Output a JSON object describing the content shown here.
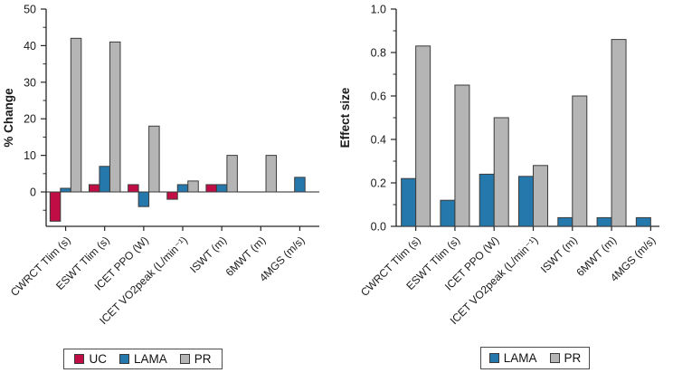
{
  "colors": {
    "uc": "#C00D45",
    "lama": "#2478AC",
    "pr": "#B5B5B5",
    "bar_edge": "#3C3C3C",
    "axis": "#262626",
    "text": "#1a1a1a",
    "legend_border": "#4D4D4D"
  },
  "chart_data": [
    {
      "type": "bar",
      "title": "",
      "ylabel": "% Change",
      "xlabel": "",
      "categories": [
        "CWRCT Tlim (s)",
        "ESWT Tlim (s)",
        "ICET PPO (W)",
        "ICET VO2peak (L/min⁻¹)",
        "ISWT (m)",
        "6MWT (m)",
        "4MGS (m/s)"
      ],
      "series": [
        {
          "name": "UC",
          "color_key": "uc",
          "values": [
            -8,
            2,
            2,
            -2,
            2,
            null,
            null
          ]
        },
        {
          "name": "LAMA",
          "color_key": "lama",
          "values": [
            1,
            7,
            -4,
            2,
            2,
            null,
            4
          ]
        },
        {
          "name": "PR",
          "color_key": "pr",
          "values": [
            42,
            41,
            18,
            3,
            10,
            10,
            null
          ]
        }
      ],
      "ylim": [
        -9.4,
        50
      ],
      "yticks": [
        0,
        10,
        20,
        30,
        40,
        50
      ],
      "ytick_labels": [
        "0",
        "10",
        "20",
        "30",
        "40",
        "50"
      ],
      "minor_yticks": [
        -5,
        5,
        15,
        25,
        35,
        45
      ],
      "grid": false,
      "legend": [
        "UC",
        "LAMA",
        "PR"
      ],
      "legend_position": "bottom"
    },
    {
      "type": "bar",
      "title": "",
      "ylabel": "Effect size",
      "xlabel": "",
      "categories": [
        "CWRCT Tlim (s)",
        "ESWT Tlim (s)",
        "ICET PPO (W)",
        "ICET VO2peak (L/min⁻¹)",
        "ISWT (m)",
        "6MWT (m)",
        "4MGS (m/s)"
      ],
      "series": [
        {
          "name": "LAMA",
          "color_key": "lama",
          "values": [
            0.22,
            0.12,
            0.24,
            0.23,
            0.04,
            0.04,
            0.04
          ]
        },
        {
          "name": "PR",
          "color_key": "pr",
          "values": [
            0.83,
            0.65,
            0.5,
            0.28,
            0.6,
            0.86,
            null
          ]
        }
      ],
      "ylim": [
        0,
        1.0
      ],
      "yticks": [
        0,
        0.2,
        0.4,
        0.6,
        0.8,
        1.0
      ],
      "ytick_labels": [
        "0.0",
        "0.2",
        "0.4",
        "0.6",
        "0.8",
        "1.0"
      ],
      "minor_yticks": [
        0.1,
        0.3,
        0.5,
        0.7,
        0.9
      ],
      "grid": false,
      "legend": [
        "LAMA",
        "PR"
      ],
      "legend_position": "bottom"
    }
  ]
}
